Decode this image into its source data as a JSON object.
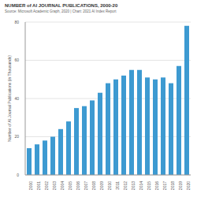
{
  "chart_data": {
    "type": "bar",
    "title": "NUMBER of AI JOURNAL PUBLICATIONS, 2000-20",
    "subtitle": "Source: Microsoft Academic Graph, 2020 | Chart: 2021 AI Index Report",
    "y_label": "Number of AI Journal Publications (in Thousands)",
    "categories": [
      "2000",
      "2001",
      "2002",
      "2003",
      "2004",
      "2005",
      "2006",
      "2007",
      "2008",
      "2009",
      "2010",
      "2011",
      "2012",
      "2013",
      "2014",
      "2015",
      "2016",
      "2017",
      "2018",
      "2019",
      "2020"
    ],
    "values": [
      14,
      16,
      18,
      20,
      24,
      28,
      35,
      36,
      39,
      43,
      48,
      50,
      52,
      55,
      55,
      51,
      50,
      51,
      48,
      57,
      78
    ],
    "color": "#3d9ad1",
    "ylim": [
      0,
      80
    ],
    "yticks": [
      0,
      20,
      40,
      60,
      80
    ],
    "grid": true
  }
}
